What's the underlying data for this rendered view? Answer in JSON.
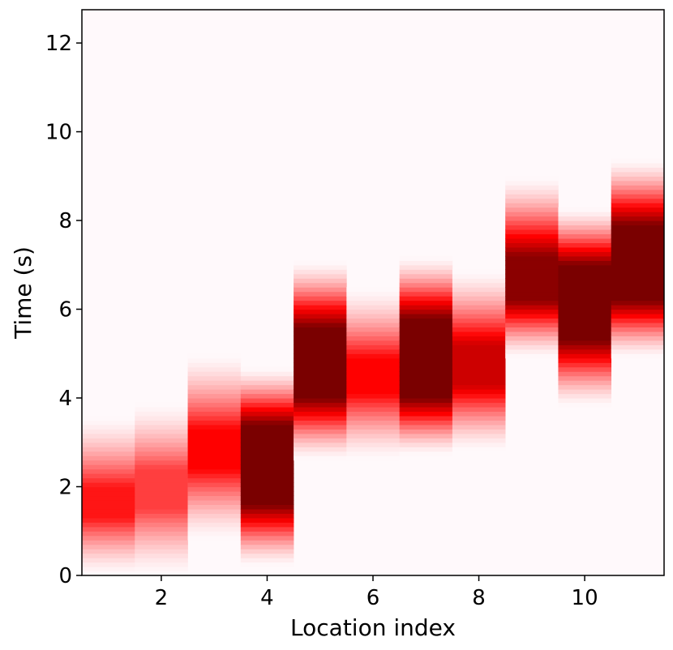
{
  "chart_data": {
    "type": "heatmap",
    "title": "",
    "xlabel": "Location index",
    "ylabel": "Time (s)",
    "xlim": [
      0.5,
      11.5
    ],
    "ylim": [
      0,
      12.75
    ],
    "xticks": [
      2,
      4,
      6,
      8,
      10
    ],
    "yticks": [
      0,
      2,
      4,
      6,
      8,
      10,
      12
    ],
    "colormap": [
      "#fff9fb",
      "#ff0000",
      "#7a0000"
    ],
    "grid": false,
    "columns": [
      {
        "location": 1,
        "low": 0.0,
        "high": 3.6,
        "peak_start": 1.3,
        "peak_end": 2.0,
        "intensity": 0.55
      },
      {
        "location": 2,
        "low": 0.0,
        "high": 3.9,
        "peak_start": 1.5,
        "peak_end": 2.4,
        "intensity": 0.45
      },
      {
        "location": 3,
        "low": 0.8,
        "high": 5.0,
        "peak_start": 2.4,
        "peak_end": 3.3,
        "intensity": 0.6
      },
      {
        "location": 4,
        "low": 0.2,
        "high": 4.7,
        "peak_start": 1.6,
        "peak_end": 3.4,
        "intensity": 1.0
      },
      {
        "location": 5,
        "low": 2.6,
        "high": 7.1,
        "peak_start": 4.0,
        "peak_end": 5.6,
        "intensity": 1.0
      },
      {
        "location": 6,
        "low": 2.6,
        "high": 6.5,
        "peak_start": 4.1,
        "peak_end": 4.9,
        "intensity": 0.6
      },
      {
        "location": 7,
        "low": 2.7,
        "high": 7.2,
        "peak_start": 4.0,
        "peak_end": 5.8,
        "intensity": 1.0
      },
      {
        "location": 8,
        "low": 2.8,
        "high": 6.9,
        "peak_start": 4.3,
        "peak_end": 5.2,
        "intensity": 0.75
      },
      {
        "location": 9,
        "low": 4.9,
        "high": 9.0,
        "peak_start": 6.2,
        "peak_end": 7.2,
        "intensity": 0.95
      },
      {
        "location": 10,
        "low": 3.8,
        "high": 8.3,
        "peak_start": 5.3,
        "peak_end": 7.0,
        "intensity": 1.0
      },
      {
        "location": 11,
        "low": 4.9,
        "high": 9.4,
        "peak_start": 6.2,
        "peak_end": 7.9,
        "intensity": 1.0
      }
    ]
  }
}
